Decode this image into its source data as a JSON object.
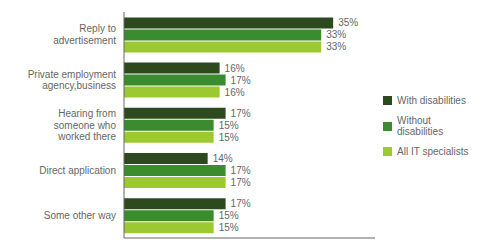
{
  "chart_data": {
    "type": "bar",
    "orientation": "horizontal",
    "categories": [
      "Some other way",
      "Direct application",
      "Hearing from\nsomeone who\nworked there",
      "Private employment\nagency,business",
      "Reply to\nadvertisement"
    ],
    "series": [
      {
        "name": "With disabilities",
        "color": "#2d4a1e",
        "values": [
          17,
          14,
          17,
          16,
          35
        ],
        "value_labels": [
          "17%",
          "14%",
          "17%",
          "16%",
          "35%"
        ]
      },
      {
        "name": "Without\ndisabilities",
        "color": "#3a8c2f",
        "values": [
          15,
          17,
          15,
          17,
          33
        ],
        "value_labels": [
          "15%",
          "17%",
          "15%",
          "17%",
          "33%"
        ]
      },
      {
        "name": "All IT specialists",
        "color": "#9dc930",
        "values": [
          15,
          17,
          15,
          16,
          33
        ],
        "value_labels": [
          "15%",
          "17%",
          "15%",
          "16%",
          "33%"
        ]
      }
    ],
    "xlim": [
      0,
      42
    ],
    "tick_labels": "y",
    "data_labels": true,
    "legend": "right",
    "grid": false
  }
}
